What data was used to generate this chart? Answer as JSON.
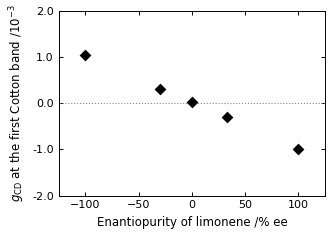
{
  "x": [
    -100,
    -30,
    0,
    33,
    100
  ],
  "y": [
    1.05,
    0.3,
    0.02,
    -0.3,
    -1.0
  ],
  "xlabel": "Enantiopurity of limonene /% ee",
  "ylabel_line1": "$g_{\\mathrm{CD}}$ at the first Cotton band /$10^{-3}$",
  "xlim": [
    -125,
    125
  ],
  "ylim": [
    -2.0,
    2.0
  ],
  "xticks": [
    -100,
    -50,
    0,
    50,
    100
  ],
  "yticks": [
    -2.0,
    -1.0,
    0.0,
    1.0,
    2.0
  ],
  "ytick_labels": [
    "-2.0",
    "-1.0",
    "0.0",
    "1.0",
    "2.0"
  ],
  "marker_color": "black",
  "marker": "D",
  "marker_size": 6,
  "hline_y": 0,
  "hline_style": "dotted",
  "hline_color": "#888888",
  "xlabel_fontsize": 8.5,
  "ylabel_fontsize": 8.5,
  "tick_fontsize": 8,
  "background_color": "#ffffff",
  "figwidth": 3.32,
  "figheight": 2.36,
  "dpi": 100
}
